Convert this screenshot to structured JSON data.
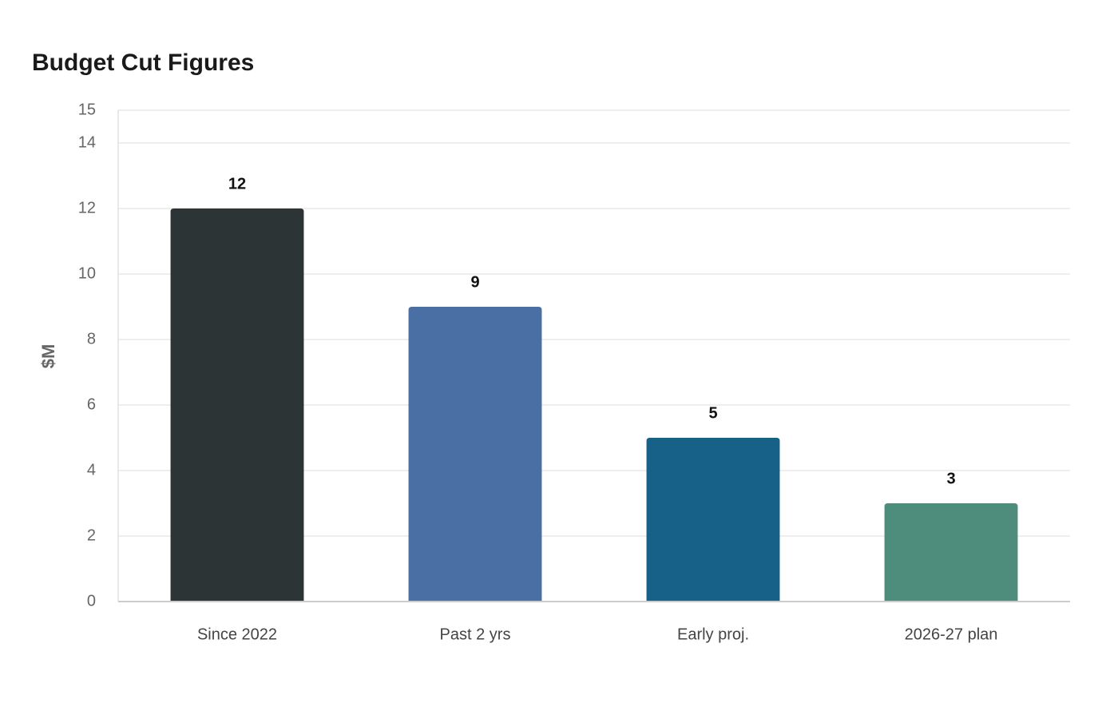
{
  "chart_data": {
    "type": "bar",
    "title": "Budget Cut Figures",
    "y_label": "$M",
    "categories": [
      "Since 2022",
      "Past 2 yrs",
      "Early proj.",
      "2026-27 plan"
    ],
    "values": [
      12,
      9,
      5,
      3
    ],
    "colors": [
      "#2d3436",
      "#4a6fa5",
      "#176087",
      "#4e8d7c"
    ],
    "ylim": [
      0,
      15
    ],
    "yticks": [
      0,
      2,
      4,
      6,
      8,
      10,
      12,
      14,
      15
    ],
    "grid": true
  }
}
